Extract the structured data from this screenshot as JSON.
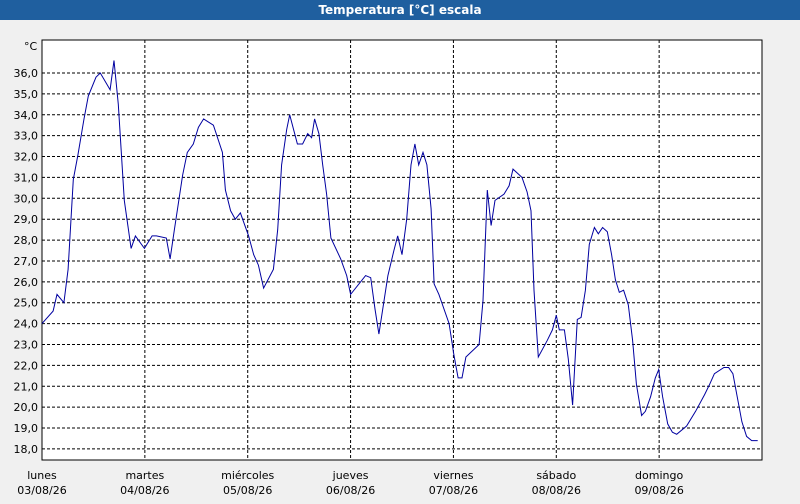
{
  "chart_data": {
    "type": "line",
    "title": "Temperatura [°C] escala",
    "unit_label": "°C",
    "xlim": [
      0,
      168
    ],
    "ylim": [
      17.47,
      37.58
    ],
    "xticks": [
      {
        "value": 0,
        "label": "lunes",
        "date": "03/08/26"
      },
      {
        "value": 24,
        "label": "martes",
        "date": "04/08/26"
      },
      {
        "value": 48,
        "label": "miércoles",
        "date": "05/08/26"
      },
      {
        "value": 72,
        "label": "jueves",
        "date": "06/08/26"
      },
      {
        "value": 96,
        "label": "viernes",
        "date": "07/08/26"
      },
      {
        "value": 120,
        "label": "sábado",
        "date": "08/08/26"
      },
      {
        "value": 144,
        "label": "domingo",
        "date": "09/08/26"
      }
    ],
    "yticks": [
      {
        "value": 18,
        "label": "18,0"
      },
      {
        "value": 19,
        "label": "19,0"
      },
      {
        "value": 20,
        "label": "20,0"
      },
      {
        "value": 21,
        "label": "21,0"
      },
      {
        "value": 22,
        "label": "22,0"
      },
      {
        "value": 23,
        "label": "23,0"
      },
      {
        "value": 24,
        "label": "24,0"
      },
      {
        "value": 25,
        "label": "25,0"
      },
      {
        "value": 26,
        "label": "26,0"
      },
      {
        "value": 27,
        "label": "27,0"
      },
      {
        "value": 28,
        "label": "28,0"
      },
      {
        "value": 29,
        "label": "29,0"
      },
      {
        "value": 30,
        "label": "30,0"
      },
      {
        "value": 31,
        "label": "31,0"
      },
      {
        "value": 32,
        "label": "32,0"
      },
      {
        "value": 33,
        "label": "33,0"
      },
      {
        "value": 34,
        "label": "34,0"
      },
      {
        "value": 35,
        "label": "35,0"
      },
      {
        "value": 36,
        "label": "36,0"
      }
    ],
    "grid": true,
    "series": [
      {
        "color": "#0000a0",
        "x": [
          0,
          2.6,
          3.5,
          5.1,
          6.1,
          7.3,
          8.4,
          9.8,
          10.8,
          12.6,
          13.6,
          15.9,
          16.8,
          17.8,
          19.2,
          20.8,
          21.8,
          23.9,
          25.7,
          26.7,
          29.0,
          29.9,
          30.9,
          32.8,
          33.9,
          35.3,
          36.5,
          37.7,
          40.0,
          42.1,
          42.8,
          44.0,
          45.1,
          46.3,
          48.2,
          49.4,
          50.5,
          51.7,
          54.0,
          55.0,
          55.9,
          57.1,
          57.8,
          59.6,
          60.8,
          62.0,
          62.9,
          63.6,
          64.6,
          65.5,
          66.4,
          67.4,
          69.7,
          71.1,
          72.0,
          75.5,
          76.7,
          77.7,
          78.6,
          80.7,
          82.1,
          83.0,
          84.0,
          85.1,
          86.1,
          87.0,
          87.9,
          88.9,
          89.8,
          90.8,
          91.5,
          92.6,
          95.0,
          96.1,
          97.1,
          98.0,
          98.9,
          102.0,
          102.9,
          103.9,
          104.8,
          105.7,
          107.8,
          109.0,
          109.9,
          112.0,
          113.2,
          114.1,
          114.8,
          115.8,
          117.9,
          119.1,
          120.0,
          120.7,
          121.9,
          122.8,
          123.8,
          124.9,
          125.8,
          126.8,
          127.7,
          128.9,
          129.8,
          130.8,
          131.9,
          132.9,
          133.8,
          134.7,
          135.7,
          136.8,
          137.8,
          138.7,
          139.9,
          140.8,
          142.0,
          143.1,
          143.9,
          144.8,
          146.0,
          147.1,
          148.1,
          150.4,
          152.5,
          154.6,
          155.8,
          156.9,
          159.1,
          160.2,
          161.2,
          162.3,
          163.3,
          164.4,
          165.6,
          167.0
        ],
        "values": [
          24.0,
          24.6,
          25.4,
          25.0,
          26.6,
          30.9,
          32.1,
          33.8,
          34.9,
          35.8,
          36.0,
          35.2,
          36.6,
          34.5,
          29.9,
          27.6,
          28.2,
          27.6,
          28.2,
          28.2,
          28.1,
          27.1,
          28.5,
          31.1,
          32.2,
          32.6,
          33.4,
          33.8,
          33.5,
          32.2,
          30.4,
          29.4,
          29.0,
          29.3,
          28.2,
          27.3,
          26.8,
          25.7,
          26.6,
          28.5,
          31.6,
          33.3,
          34.0,
          32.6,
          32.6,
          33.1,
          32.9,
          33.8,
          33.1,
          31.6,
          30.2,
          28.1,
          27.1,
          26.3,
          25.4,
          26.3,
          26.2,
          24.7,
          23.5,
          26.3,
          27.5,
          28.2,
          27.3,
          29.0,
          31.6,
          32.6,
          31.6,
          32.2,
          31.6,
          29.5,
          25.9,
          25.4,
          24.0,
          22.5,
          21.4,
          21.4,
          22.4,
          23.0,
          25.1,
          30.4,
          28.7,
          29.9,
          30.2,
          30.6,
          31.4,
          31.0,
          30.3,
          29.4,
          25.6,
          22.4,
          23.2,
          23.7,
          24.4,
          23.7,
          23.7,
          22.3,
          20.1,
          24.2,
          24.3,
          25.6,
          27.8,
          28.6,
          28.3,
          28.6,
          28.4,
          27.3,
          26.1,
          25.5,
          25.6,
          24.9,
          23.2,
          21.1,
          19.6,
          19.8,
          20.5,
          21.4,
          21.8,
          20.5,
          19.2,
          18.8,
          18.7,
          19.1,
          19.8,
          20.6,
          21.1,
          21.6,
          21.9,
          21.9,
          21.6,
          20.4,
          19.3,
          18.6,
          18.4,
          18.4
        ]
      }
    ]
  }
}
